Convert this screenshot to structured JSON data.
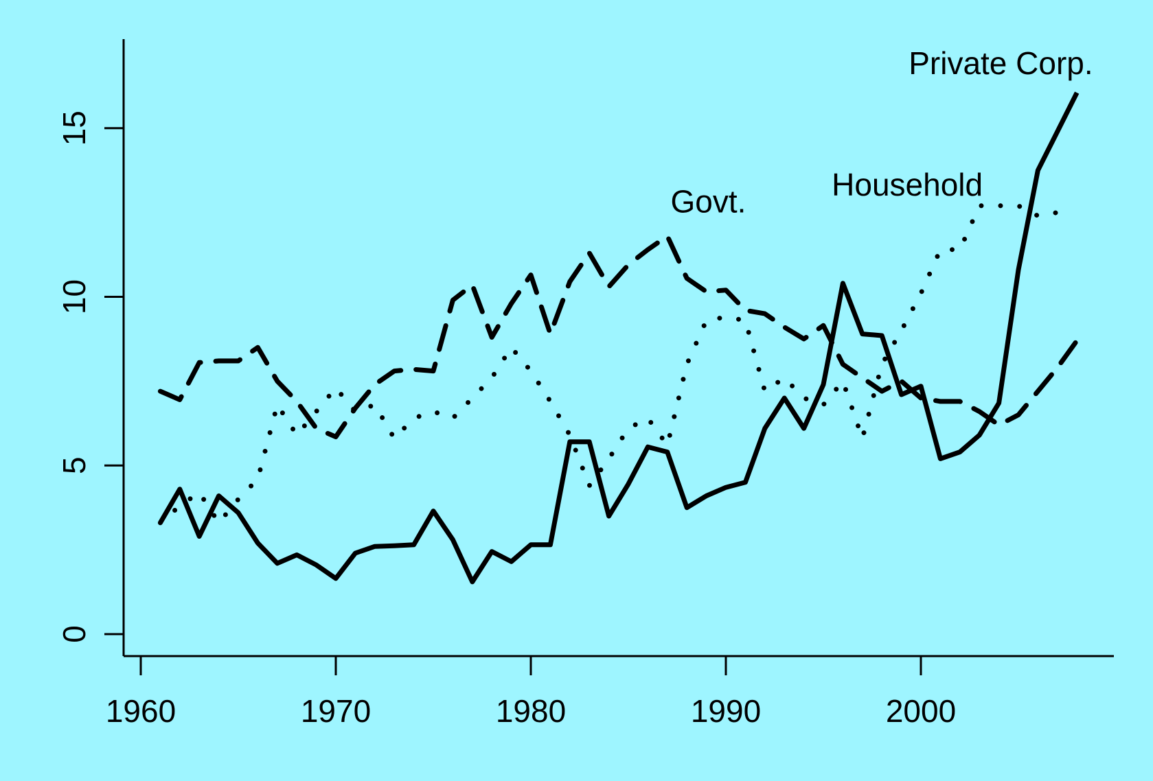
{
  "chart_data": {
    "type": "line",
    "title": "",
    "xlabel": "",
    "ylabel": "",
    "xlim": [
      1959,
      2009.5
    ],
    "ylim": [
      -0.7,
      17.8
    ],
    "grid": false,
    "background": "#9EF5FF",
    "x_ticks": [
      1960,
      1970,
      1980,
      1990,
      2000
    ],
    "x_tick_labels": [
      "1960",
      "1970",
      "1980",
      "1990",
      "2000"
    ],
    "y_ticks": [
      0,
      5,
      10,
      15
    ],
    "y_tick_labels": [
      "0",
      "5",
      "10",
      "15"
    ],
    "series": [
      {
        "name": "Private Corp.",
        "style": "solid",
        "color": "#000000",
        "x": [
          1961,
          1962,
          1963,
          1964,
          1965,
          1966,
          1967,
          1968,
          1969,
          1970,
          1971,
          1972,
          1973,
          1974,
          1975,
          1976,
          1977,
          1978,
          1979,
          1980,
          1981,
          1982,
          1983,
          1984,
          1985,
          1986,
          1987,
          1988,
          1989,
          1990,
          1991,
          1992,
          1993,
          1994,
          1995,
          1996,
          1997,
          1998,
          1999,
          2000,
          2001,
          2002,
          2003,
          2004,
          2005,
          2006,
          2007,
          2008
        ],
        "values": [
          3.3,
          4.3,
          2.9,
          4.1,
          3.6,
          2.7,
          2.1,
          2.35,
          2.05,
          1.65,
          2.4,
          2.6,
          2.62,
          2.65,
          3.65,
          2.8,
          1.55,
          2.45,
          2.15,
          2.65,
          2.65,
          5.7,
          5.7,
          3.5,
          4.45,
          5.55,
          5.4,
          3.75,
          4.1,
          4.35,
          4.5,
          6.1,
          7.0,
          6.1,
          7.4,
          10.4,
          8.9,
          8.85,
          7.1,
          7.35,
          5.2,
          5.4,
          5.9,
          6.85,
          10.8,
          13.75,
          14.9,
          16.05
        ]
      },
      {
        "name": "Household",
        "style": "dotted",
        "color": "#000000",
        "x": [
          1961,
          1962,
          1963,
          1964,
          1965,
          1966,
          1967,
          1968,
          1969,
          1970,
          1971,
          1972,
          1973,
          1974,
          1975,
          1976,
          1977,
          1978,
          1979,
          1980,
          1981,
          1982,
          1983,
          1984,
          1985,
          1986,
          1987,
          1988,
          1989,
          1990,
          1991,
          1992,
          1993,
          1994,
          1995,
          1996,
          1997,
          1998,
          1999,
          2000,
          2001,
          2002,
          2003,
          2004,
          2005,
          2006,
          2007
        ],
        "values": [
          3.3,
          3.8,
          4.2,
          3.3,
          4.0,
          4.6,
          6.8,
          5.9,
          6.6,
          7.3,
          6.6,
          6.8,
          5.8,
          6.4,
          6.6,
          6.4,
          7.0,
          7.6,
          8.5,
          7.8,
          6.9,
          5.9,
          4.4,
          5.2,
          6.1,
          6.4,
          5.6,
          8.0,
          9.3,
          9.4,
          9.3,
          7.2,
          7.6,
          7.0,
          6.8,
          7.5,
          5.8,
          8.0,
          9.0,
          10.1,
          11.4,
          11.4,
          12.7,
          12.7,
          12.7,
          12.4,
          12.5
        ]
      },
      {
        "name": "Govt.",
        "style": "dashed",
        "color": "#000000",
        "x": [
          1961,
          1962,
          1963,
          1964,
          1965,
          1966,
          1967,
          1968,
          1969,
          1970,
          1971,
          1972,
          1973,
          1974,
          1975,
          1976,
          1977,
          1978,
          1979,
          1980,
          1981,
          1982,
          1983,
          1984,
          1985,
          1986,
          1987,
          1988,
          1989,
          1990,
          1991,
          1992,
          1993,
          1994,
          1995,
          1996,
          1997,
          1998,
          1999,
          2000,
          2001,
          2002,
          2003,
          2004,
          2005,
          2006,
          2007,
          2008
        ],
        "values": [
          7.2,
          6.95,
          8.05,
          8.1,
          8.1,
          8.5,
          7.5,
          6.9,
          6.1,
          5.85,
          6.7,
          7.4,
          7.8,
          7.85,
          7.8,
          9.9,
          10.35,
          8.8,
          9.8,
          10.65,
          8.9,
          10.45,
          11.3,
          10.3,
          10.95,
          11.4,
          11.8,
          10.55,
          10.15,
          10.2,
          9.6,
          9.5,
          9.1,
          8.75,
          9.15,
          8.0,
          7.6,
          7.2,
          7.5,
          7.0,
          6.9,
          6.9,
          6.6,
          6.2,
          6.5,
          7.2,
          7.9,
          8.7
        ]
      }
    ],
    "annotations": [
      {
        "text": "Private Corp.",
        "x": 2004.1,
        "y": 16.6
      },
      {
        "text": "Household",
        "x": 1999.3,
        "y": 13.0
      },
      {
        "text": "Govt.",
        "x": 1989.1,
        "y": 12.5
      }
    ]
  }
}
